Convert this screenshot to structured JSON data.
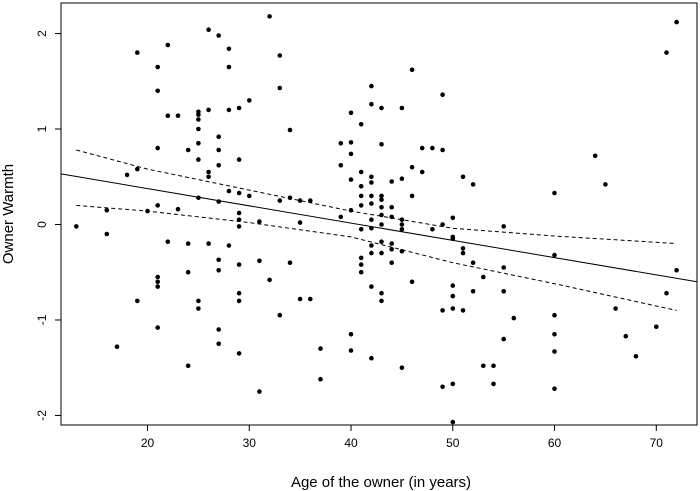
{
  "chart_data": {
    "type": "scatter",
    "xlabel": "Age of the owner (in years)",
    "ylabel": "Owner Warmth",
    "xlim": [
      11.5,
      74
    ],
    "ylim": [
      -2.1,
      2.32
    ],
    "x_ticks": [
      20,
      30,
      40,
      50,
      60,
      70
    ],
    "y_ticks": [
      -2,
      -1,
      0,
      1,
      2
    ],
    "grid": false,
    "colors": {
      "points": "#000000",
      "lines": "#000000"
    },
    "points": [
      [
        13,
        -0.02
      ],
      [
        16,
        0.15
      ],
      [
        16,
        -0.1
      ],
      [
        17,
        -1.28
      ],
      [
        18,
        0.52
      ],
      [
        19,
        1.8
      ],
      [
        19,
        0.58
      ],
      [
        19,
        -0.8
      ],
      [
        20,
        0.14
      ],
      [
        21,
        1.65
      ],
      [
        21,
        1.4
      ],
      [
        21,
        0.8
      ],
      [
        21,
        0.2
      ],
      [
        21,
        -0.55
      ],
      [
        21,
        -0.6
      ],
      [
        21,
        -0.65
      ],
      [
        21,
        -1.08
      ],
      [
        22,
        1.88
      ],
      [
        22,
        1.14
      ],
      [
        22,
        -0.18
      ],
      [
        23,
        1.14
      ],
      [
        23,
        0.16
      ],
      [
        24,
        -0.2
      ],
      [
        24,
        -0.5
      ],
      [
        24,
        -1.48
      ],
      [
        24,
        0.78
      ],
      [
        25,
        1.18
      ],
      [
        25,
        1.15
      ],
      [
        25,
        1.1
      ],
      [
        25,
        1.0
      ],
      [
        25,
        0.85
      ],
      [
        25,
        0.68
      ],
      [
        25,
        0.28
      ],
      [
        25,
        -0.8
      ],
      [
        25,
        -0.88
      ],
      [
        26,
        2.04
      ],
      [
        26,
        1.2
      ],
      [
        26,
        0.55
      ],
      [
        26,
        0.5
      ],
      [
        26,
        -0.2
      ],
      [
        27,
        1.98
      ],
      [
        27,
        0.92
      ],
      [
        27,
        0.78
      ],
      [
        27,
        0.62
      ],
      [
        27,
        0.24
      ],
      [
        27,
        -0.37
      ],
      [
        27,
        -0.48
      ],
      [
        27,
        -1.1
      ],
      [
        27,
        -1.25
      ],
      [
        28,
        1.84
      ],
      [
        28,
        1.65
      ],
      [
        28,
        1.2
      ],
      [
        28,
        0.35
      ],
      [
        28,
        -0.22
      ],
      [
        29,
        1.22
      ],
      [
        29,
        0.68
      ],
      [
        29,
        0.33
      ],
      [
        29,
        0.12
      ],
      [
        29,
        0.05
      ],
      [
        29,
        -0.02
      ],
      [
        29,
        -0.42
      ],
      [
        29,
        -0.72
      ],
      [
        29,
        -0.8
      ],
      [
        29,
        -1.35
      ],
      [
        30,
        1.3
      ],
      [
        30,
        0.3
      ],
      [
        31,
        0.03
      ],
      [
        31,
        -0.38
      ],
      [
        31,
        -1.75
      ],
      [
        32,
        2.18
      ],
      [
        32,
        -0.58
      ],
      [
        33,
        1.77
      ],
      [
        33,
        1.43
      ],
      [
        33,
        0.25
      ],
      [
        33,
        -0.95
      ],
      [
        34,
        0.99
      ],
      [
        34,
        0.28
      ],
      [
        34,
        -0.4
      ],
      [
        35,
        0.25
      ],
      [
        35,
        0.02
      ],
      [
        35,
        -0.78
      ],
      [
        36,
        0.25
      ],
      [
        36,
        -0.78
      ],
      [
        37,
        -1.3
      ],
      [
        37,
        -1.62
      ],
      [
        39,
        0.62
      ],
      [
        39,
        0.85
      ],
      [
        39,
        0.08
      ],
      [
        40,
        1.17
      ],
      [
        40,
        0.86
      ],
      [
        40,
        0.74
      ],
      [
        40,
        0.47
      ],
      [
        40,
        0.15
      ],
      [
        40,
        -1.15
      ],
      [
        40,
        -1.32
      ],
      [
        41,
        1.05
      ],
      [
        41,
        0.55
      ],
      [
        41,
        0.4
      ],
      [
        41,
        0.3
      ],
      [
        41,
        0.2
      ],
      [
        41,
        -0.05
      ],
      [
        41,
        -0.35
      ],
      [
        41,
        -0.42
      ],
      [
        41,
        -0.5
      ],
      [
        42,
        1.45
      ],
      [
        42,
        1.26
      ],
      [
        42,
        0.5
      ],
      [
        42,
        0.44
      ],
      [
        42,
        0.3
      ],
      [
        42,
        0.22
      ],
      [
        42,
        0.05
      ],
      [
        42,
        -0.04
      ],
      [
        42,
        -0.22
      ],
      [
        42,
        -0.3
      ],
      [
        42,
        -0.65
      ],
      [
        42,
        -1.4
      ],
      [
        43,
        1.22
      ],
      [
        43,
        0.84
      ],
      [
        43,
        0.3
      ],
      [
        43,
        0.26
      ],
      [
        43,
        0.18
      ],
      [
        43,
        0.1
      ],
      [
        43,
        0.0
      ],
      [
        43,
        -0.18
      ],
      [
        43,
        -0.3
      ],
      [
        43,
        -0.72
      ],
      [
        43,
        -0.8
      ],
      [
        44,
        0.45
      ],
      [
        44,
        0.18
      ],
      [
        44,
        0.08
      ],
      [
        44,
        -0.2
      ],
      [
        44,
        -0.26
      ],
      [
        44,
        -0.4
      ],
      [
        45,
        1.22
      ],
      [
        45,
        0.48
      ],
      [
        45,
        0.05
      ],
      [
        45,
        0.0
      ],
      [
        45,
        -0.05
      ],
      [
        45,
        -0.28
      ],
      [
        45,
        -1.5
      ],
      [
        46,
        1.62
      ],
      [
        46,
        0.6
      ],
      [
        46,
        0.3
      ],
      [
        46,
        -0.6
      ],
      [
        47,
        0.8
      ],
      [
        47,
        0.55
      ],
      [
        48,
        0.8
      ],
      [
        48,
        -0.05
      ],
      [
        49,
        1.36
      ],
      [
        49,
        0.78
      ],
      [
        49,
        0.0
      ],
      [
        49,
        -0.9
      ],
      [
        49,
        -1.7
      ],
      [
        50,
        0.07
      ],
      [
        50,
        -0.13
      ],
      [
        50,
        -0.15
      ],
      [
        50,
        -0.64
      ],
      [
        50,
        -0.75
      ],
      [
        50,
        -0.88
      ],
      [
        50,
        -1.67
      ],
      [
        50,
        -2.07
      ],
      [
        51,
        0.5
      ],
      [
        51,
        -0.25
      ],
      [
        51,
        -0.3
      ],
      [
        51,
        -0.9
      ],
      [
        52,
        0.42
      ],
      [
        52,
        -0.4
      ],
      [
        52,
        -0.7
      ],
      [
        53,
        -0.55
      ],
      [
        53,
        -1.48
      ],
      [
        54,
        -1.48
      ],
      [
        54,
        -1.67
      ],
      [
        55,
        -0.02
      ],
      [
        55,
        -0.45
      ],
      [
        55,
        -0.7
      ],
      [
        55,
        -1.2
      ],
      [
        56,
        -0.98
      ],
      [
        60,
        0.33
      ],
      [
        60,
        -0.32
      ],
      [
        60,
        -0.95
      ],
      [
        60,
        -1.15
      ],
      [
        60,
        -1.33
      ],
      [
        60,
        -1.72
      ],
      [
        64,
        0.72
      ],
      [
        65,
        0.42
      ],
      [
        66,
        -0.88
      ],
      [
        67,
        -1.17
      ],
      [
        68,
        -1.38
      ],
      [
        70,
        -1.07
      ],
      [
        71,
        1.8
      ],
      [
        71,
        -0.72
      ],
      [
        72,
        2.12
      ],
      [
        72,
        -0.48
      ]
    ],
    "regression_line": {
      "x": [
        11.5,
        74
      ],
      "y": [
        0.53,
        -0.6
      ]
    },
    "confidence_upper": {
      "x": [
        13,
        20,
        30,
        40,
        50,
        60,
        72
      ],
      "y": [
        0.78,
        0.58,
        0.36,
        0.14,
        -0.04,
        -0.12,
        -0.2
      ]
    },
    "confidence_lower": {
      "x": [
        13,
        20,
        30,
        40,
        50,
        60,
        72
      ],
      "y": [
        0.2,
        0.14,
        0.02,
        -0.13,
        -0.4,
        -0.62,
        -0.9
      ]
    }
  }
}
